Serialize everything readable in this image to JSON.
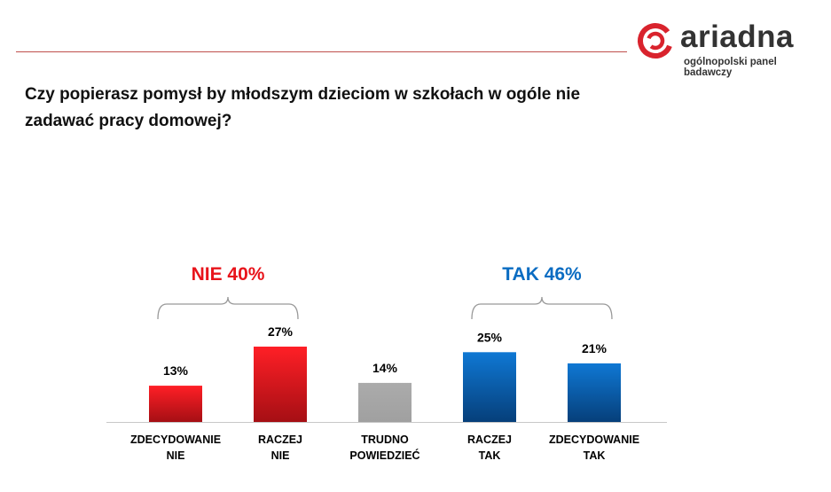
{
  "brand": {
    "name": "ariadna",
    "tagline": "ogólnopolski panel badawczy",
    "accent": "#d9232d"
  },
  "question": "Czy popierasz pomysł by młodszym dzieciom w szkołach w ogóle nie zadawać pracy domowej?",
  "chart_data": {
    "type": "bar",
    "title": "Czy popierasz pomysł by młodszym dzieciom w szkołach w ogóle nie zadawać pracy domowej?",
    "categories": [
      [
        "ZDECYDOWANIE",
        "NIE"
      ],
      [
        "RACZEJ",
        "NIE"
      ],
      [
        "TRUDNO",
        "POWIEDZIEĆ"
      ],
      [
        "RACZEJ",
        "TAK"
      ],
      [
        "ZDECYDOWANIE",
        "TAK"
      ]
    ],
    "values": [
      13,
      27,
      14,
      25,
      21
    ],
    "value_labels": [
      "13%",
      "27%",
      "14%",
      "25%",
      "21%"
    ],
    "colors": [
      "#e8141b",
      "#e8141b",
      "#a6a6a6",
      "#0a6cc2",
      "#0a6cc2"
    ],
    "ylim": [
      0,
      30
    ],
    "groups": [
      {
        "label": "NIE 40%",
        "color": "#e8141b",
        "from": 0,
        "to": 1
      },
      {
        "label": "TAK 46%",
        "color": "#0a6cc2",
        "from": 3,
        "to": 4
      }
    ]
  }
}
